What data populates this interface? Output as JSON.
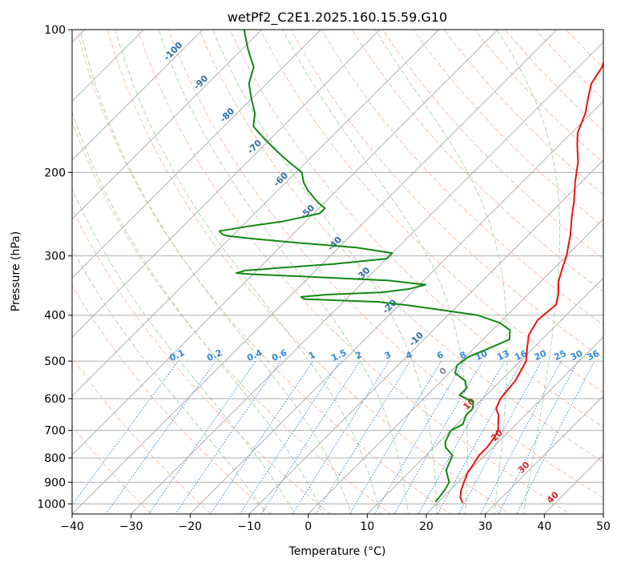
{
  "chart_data": {
    "type": "line",
    "subtype": "skew-t log-p diagram",
    "title": "wetPf2_C2E1.2025.160.15.59.G10",
    "xlabel": "Temperature (°C)",
    "ylabel": "Pressure (hPa)",
    "xlim": [
      -40,
      50
    ],
    "ylim": [
      1050,
      100
    ],
    "y_scale": "log",
    "x_ticks": [
      "−40",
      "−30",
      "−20",
      "−10",
      "0",
      "10",
      "20",
      "30",
      "40",
      "50"
    ],
    "y_ticks": [
      "100",
      "200",
      "300",
      "400",
      "500",
      "600",
      "700",
      "800",
      "900",
      "1000"
    ],
    "grid": true,
    "colors": {
      "temperature": "#ee1111",
      "dewpoint": "#118811",
      "dry_adiabat": "#f4a582",
      "moist_adiabat": "#99cc99",
      "mixing_ratio": "#3388dd",
      "isotherm_labels": "#2c6fa8",
      "isotherm_labels_warm": "#d62728",
      "zero_label": "#888888",
      "grid": "#b0b0b0"
    },
    "series": [
      {
        "key": "temperature",
        "pressure": [
          995,
          970,
          940,
          900,
          860,
          820,
          790,
          760,
          720,
          700,
          680,
          650,
          630,
          600,
          550,
          500,
          470,
          440,
          410,
          380,
          360,
          340,
          320,
          300,
          270,
          250,
          230,
          210,
          190,
          175,
          165,
          150,
          140,
          130,
          120,
          110,
          100
        ],
        "temperature_c": [
          24.3,
          23.0,
          22.0,
          21.0,
          20.0,
          19.5,
          19.0,
          19.0,
          18.5,
          18.0,
          17.0,
          15.5,
          14.0,
          13.0,
          12.5,
          11.0,
          9.0,
          7.0,
          6.0,
          6.5,
          5.0,
          3.0,
          1.5,
          0.0,
          -3.0,
          -5.5,
          -8.0,
          -11.0,
          -14.0,
          -17.0,
          -19.0,
          -21.0,
          -23.0,
          -25.0,
          -26.0,
          -28.0,
          -29.0
        ]
      },
      {
        "key": "dewpoint",
        "pressure": [
          990,
          960,
          930,
          900,
          870,
          850,
          830,
          810,
          790,
          760,
          740,
          720,
          700,
          680,
          650,
          630,
          610,
          590,
          570,
          550,
          530,
          510,
          490,
          470,
          450,
          430,
          415,
          400,
          390,
          382,
          375,
          370,
          366,
          362,
          358,
          352,
          345,
          338,
          332,
          328,
          326,
          322,
          320,
          318,
          312,
          304,
          296,
          288,
          282,
          276,
          272,
          270,
          266,
          260,
          254,
          248,
          244,
          238,
          232,
          225,
          218,
          210,
          200,
          190,
          180,
          170,
          160,
          150,
          140,
          130,
          120,
          110,
          100
        ],
        "dewpoint_c": [
          19.5,
          19.3,
          19.0,
          18.5,
          17.0,
          16.0,
          15.5,
          15.0,
          14.5,
          12.0,
          11.0,
          10.5,
          10.0,
          11.0,
          10.0,
          10.0,
          9.0,
          5.5,
          5.5,
          4.0,
          1.0,
          0.0,
          0.5,
          2.5,
          4.5,
          3.0,
          0.0,
          -5.0,
          -12.0,
          -18.0,
          -24.0,
          -37.0,
          -38.0,
          -34.0,
          -25.0,
          -21.0,
          -19.0,
          -26.0,
          -40.0,
          -50.0,
          -53.0,
          -52.0,
          -49.0,
          -47.0,
          -38.0,
          -30.0,
          -30.0,
          -37.0,
          -47.0,
          -56.0,
          -61.0,
          -62.0,
          -63.0,
          -59.0,
          -54.0,
          -51.0,
          -49.0,
          -49.0,
          -51.0,
          -53.0,
          -55.0,
          -57.0,
          -59.0,
          -63.0,
          -67.0,
          -71.0,
          -75.0,
          -77.0,
          -80.0,
          -83.0,
          -85.0,
          -89.0,
          -93.0
        ]
      }
    ],
    "dry_adiabats_c": [
      -30,
      -20,
      -10,
      0,
      10,
      20,
      30,
      40,
      50,
      60,
      70,
      80,
      90,
      100,
      110,
      120,
      130,
      140,
      150,
      160,
      170,
      180
    ],
    "moist_adiabats_c": [
      -10,
      -5,
      0,
      5,
      10,
      15,
      20,
      25,
      30,
      35
    ],
    "mixing_ratio_lines_gkg": [
      "0.1",
      "0.2",
      "0.4",
      "0.6",
      "1",
      "1.5",
      "2",
      "3",
      "4",
      "6",
      "8",
      "10",
      "13",
      "16",
      "20",
      "25",
      "30",
      "36"
    ],
    "isotherm_labels_c": [
      "-100",
      "-90",
      "-80",
      "-70",
      "-60",
      "-50",
      "-40",
      "-30",
      "-20",
      "-10",
      "0",
      "10",
      "20",
      "30",
      "40"
    ]
  }
}
